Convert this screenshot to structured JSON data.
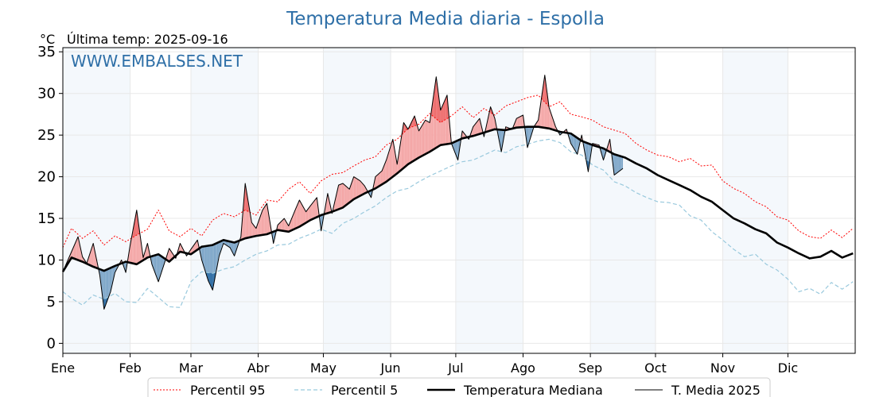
{
  "chart_data": {
    "type": "line",
    "title": "Temperatura Media diaria - Espolla",
    "ylabel": "°C",
    "last_temp_label": "Última temp: 2025-09-16",
    "watermark": "WWW.EMBALSES.NET",
    "ylim": [
      -1.2,
      35.5
    ],
    "yticks": [
      0,
      5,
      10,
      15,
      20,
      25,
      30,
      35
    ],
    "xlim": [
      1,
      366
    ],
    "months": [
      "Ene",
      "Feb",
      "Mar",
      "Abr",
      "May",
      "Jun",
      "Jul",
      "Ago",
      "Sep",
      "Oct",
      "Nov",
      "Dic"
    ],
    "month_start_days": [
      1,
      32,
      60,
      91,
      121,
      152,
      182,
      213,
      244,
      274,
      305,
      335
    ],
    "grid": true,
    "legend_position": "bottom-center",
    "colors": {
      "p95": "#ff0000",
      "p5": "#99c9dd",
      "median": "#000000",
      "current": "#000000",
      "above_fill": "#f4a7a7",
      "above_strong_fill": "#ee6f6f",
      "below_fill": "#7fa7c9",
      "below_strong_fill": "#2f6ea5",
      "title": "#2e6fa7",
      "band": "#f4f8fc"
    },
    "legend": [
      "Percentil 95",
      "Percentil 5",
      "Temperatura Mediana",
      "T. Media 2025"
    ],
    "series": [
      {
        "name": "Percentil 95",
        "style": "dotted",
        "x": [
          1,
          5,
          10,
          15,
          20,
          25,
          30,
          35,
          40,
          45,
          50,
          55,
          60,
          65,
          70,
          75,
          80,
          85,
          90,
          95,
          100,
          105,
          110,
          115,
          120,
          125,
          130,
          135,
          140,
          145,
          150,
          155,
          160,
          165,
          170,
          175,
          180,
          185,
          190,
          195,
          200,
          205,
          210,
          215,
          220,
          225,
          230,
          235,
          240,
          245,
          250,
          255,
          260,
          265,
          270,
          275,
          280,
          285,
          290,
          295,
          300,
          305,
          310,
          315,
          320,
          325,
          330,
          335,
          340,
          345,
          350,
          355,
          360,
          365
        ],
        "values": [
          11.5,
          13.8,
          12.6,
          13.5,
          11.8,
          12.9,
          12.2,
          13.0,
          13.7,
          16.0,
          13.5,
          12.8,
          13.8,
          12.9,
          14.8,
          15.6,
          15.2,
          16.0,
          15.4,
          17.2,
          17.0,
          18.5,
          19.4,
          18.0,
          19.5,
          20.3,
          20.5,
          21.3,
          22.0,
          22.4,
          23.8,
          24.5,
          25.8,
          26.3,
          27.6,
          26.5,
          27.3,
          28.4,
          27.1,
          28.2,
          27.4,
          28.5,
          29.0,
          29.5,
          29.8,
          28.4,
          29.0,
          27.5,
          27.2,
          26.8,
          26.0,
          25.6,
          25.2,
          24.0,
          23.2,
          22.6,
          22.4,
          21.8,
          22.2,
          21.3,
          21.4,
          19.5,
          18.6,
          18.0,
          17.0,
          16.4,
          15.2,
          14.8,
          13.5,
          12.8,
          12.6,
          13.6,
          12.7,
          13.8
        ]
      },
      {
        "name": "Percentil 5",
        "style": "dashed",
        "x": [
          1,
          5,
          10,
          15,
          20,
          25,
          30,
          35,
          40,
          45,
          50,
          55,
          60,
          65,
          70,
          75,
          80,
          85,
          90,
          95,
          100,
          105,
          110,
          115,
          120,
          125,
          130,
          135,
          140,
          145,
          150,
          155,
          160,
          165,
          170,
          175,
          180,
          185,
          190,
          195,
          200,
          205,
          210,
          215,
          220,
          225,
          230,
          235,
          240,
          245,
          250,
          255,
          260,
          265,
          270,
          275,
          280,
          285,
          290,
          295,
          300,
          305,
          310,
          315,
          320,
          325,
          330,
          335,
          340,
          345,
          350,
          355,
          360,
          365
        ],
        "values": [
          6.2,
          5.4,
          4.6,
          5.8,
          5.3,
          6.0,
          5.0,
          4.9,
          6.6,
          5.5,
          4.4,
          4.3,
          7.4,
          8.6,
          8.4,
          8.9,
          9.2,
          10.0,
          10.7,
          11.1,
          11.8,
          11.9,
          12.6,
          13.1,
          13.7,
          13.2,
          14.4,
          15.0,
          15.8,
          16.5,
          17.5,
          18.3,
          18.6,
          19.4,
          20.1,
          20.7,
          21.3,
          21.8,
          22.0,
          22.6,
          23.2,
          22.9,
          23.6,
          23.9,
          24.3,
          24.5,
          24.1,
          23.0,
          22.6,
          21.4,
          20.8,
          19.4,
          18.9,
          18.1,
          17.5,
          17.0,
          16.9,
          16.6,
          15.3,
          14.8,
          13.4,
          12.4,
          11.3,
          10.4,
          10.7,
          9.5,
          8.8,
          7.7,
          6.2,
          6.6,
          5.9,
          7.3,
          6.5,
          7.4
        ]
      },
      {
        "name": "Temperatura Mediana",
        "style": "thick",
        "x": [
          1,
          5,
          10,
          15,
          20,
          25,
          30,
          35,
          40,
          45,
          50,
          55,
          60,
          65,
          70,
          75,
          80,
          85,
          90,
          95,
          100,
          105,
          110,
          115,
          120,
          125,
          130,
          135,
          140,
          145,
          150,
          155,
          160,
          165,
          170,
          175,
          180,
          185,
          190,
          195,
          200,
          205,
          210,
          215,
          220,
          225,
          230,
          235,
          240,
          245,
          250,
          255,
          260,
          265,
          270,
          275,
          280,
          285,
          290,
          295,
          300,
          305,
          310,
          315,
          320,
          325,
          330,
          335,
          340,
          345,
          350,
          355,
          360,
          365
        ],
        "values": [
          8.6,
          10.3,
          9.8,
          9.2,
          8.7,
          9.3,
          9.8,
          9.5,
          10.3,
          10.7,
          9.8,
          11.0,
          10.7,
          11.6,
          11.8,
          12.4,
          12.1,
          12.6,
          12.9,
          13.1,
          13.6,
          13.4,
          14.0,
          14.8,
          15.4,
          15.8,
          16.3,
          17.3,
          18.0,
          18.6,
          19.4,
          20.4,
          21.5,
          22.3,
          23.0,
          23.8,
          24.0,
          24.6,
          24.9,
          25.3,
          25.7,
          25.6,
          25.9,
          26.0,
          26.0,
          25.8,
          25.4,
          25.2,
          24.3,
          23.8,
          23.4,
          22.7,
          22.3,
          21.6,
          21.0,
          20.2,
          19.6,
          19.0,
          18.4,
          17.6,
          17.0,
          16.0,
          15.0,
          14.4,
          13.7,
          13.2,
          12.1,
          11.5,
          10.8,
          10.2,
          10.4,
          11.1,
          10.3,
          10.8
        ]
      },
      {
        "name": "T. Media 2025",
        "style": "thin",
        "x": [
          1,
          5,
          8,
          10,
          12,
          15,
          18,
          20,
          23,
          25,
          28,
          30,
          32,
          35,
          38,
          40,
          42,
          45,
          48,
          50,
          53,
          55,
          58,
          60,
          63,
          65,
          68,
          70,
          73,
          75,
          78,
          80,
          83,
          85,
          88,
          90,
          93,
          95,
          98,
          100,
          103,
          105,
          108,
          110,
          113,
          115,
          118,
          120,
          123,
          125,
          128,
          130,
          133,
          135,
          138,
          140,
          143,
          145,
          148,
          150,
          153,
          155,
          158,
          160,
          163,
          165,
          168,
          170,
          173,
          175,
          178,
          180,
          183,
          185,
          188,
          190,
          193,
          195,
          198,
          200,
          203,
          205,
          208,
          210,
          213,
          215,
          218,
          220,
          223,
          225,
          228,
          230,
          233,
          235,
          238,
          240,
          243,
          245,
          248,
          250,
          253,
          255,
          259
        ],
        "values": [
          8.6,
          11.0,
          12.8,
          10.4,
          9.6,
          12.0,
          8.2,
          4.1,
          6.2,
          8.5,
          10.0,
          8.5,
          11.8,
          16.0,
          10.3,
          12.0,
          9.5,
          7.4,
          9.8,
          11.4,
          10.2,
          12.0,
          10.5,
          11.3,
          12.4,
          10.0,
          7.5,
          6.4,
          10.5,
          12.0,
          11.5,
          10.5,
          12.8,
          19.2,
          14.5,
          13.8,
          16.0,
          16.8,
          12.0,
          14.2,
          15.0,
          14.1,
          16.0,
          17.2,
          15.8,
          16.5,
          17.5,
          13.5,
          18.0,
          15.6,
          19.0,
          19.2,
          18.5,
          20.0,
          19.5,
          18.9,
          17.5,
          20.0,
          20.7,
          22.0,
          24.5,
          21.5,
          26.5,
          25.7,
          27.3,
          25.5,
          26.8,
          26.5,
          32.0,
          28.0,
          29.8,
          24.0,
          22.0,
          25.5,
          24.5,
          26.0,
          27.0,
          24.8,
          28.4,
          27.0,
          23.0,
          26.0,
          25.7,
          27.0,
          27.4,
          23.5,
          26.0,
          26.8,
          32.2,
          28.3,
          26.0,
          25.0,
          25.7,
          24.0,
          22.7,
          25.0,
          20.6,
          24.0,
          23.8,
          22.0,
          24.5,
          20.2,
          21.0
        ]
      }
    ]
  }
}
